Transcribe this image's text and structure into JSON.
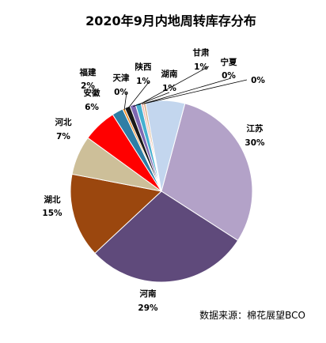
{
  "chart_data": {
    "type": "pie",
    "title": "2020年9月内地周转库存分布",
    "source": "数据来源：棉花展望BCO",
    "slices": [
      {
        "name": "江苏",
        "value": 30,
        "label": "30%",
        "color": "#b3a2c8"
      },
      {
        "name": "河南",
        "value": 29,
        "label": "29%",
        "color": "#5f4a7b"
      },
      {
        "name": "湖北",
        "value": 15,
        "label": "15%",
        "color": "#9b470e"
      },
      {
        "name": "河北",
        "value": 7,
        "label": "7%",
        "color": "#cdbf99"
      },
      {
        "name": "安徽",
        "value": 6,
        "label": "6%",
        "color": "#ff0000"
      },
      {
        "name": "福建",
        "value": 2,
        "label": "2%",
        "color": "#2f7ea5"
      },
      {
        "name": "天津",
        "value": 0.4,
        "label": "0%",
        "color": "#f08a1e"
      },
      {
        "name": "陕西",
        "value": 1,
        "label": "1%",
        "color": "#1a1a1a"
      },
      {
        "name": "湖南",
        "value": 1,
        "label": "1%",
        "color": "#7f68b2"
      },
      {
        "name": "甘肃",
        "value": 1,
        "label": "1%",
        "color": "#45b0d0"
      },
      {
        "name": "宁夏",
        "value": 0.4,
        "label": "0%",
        "color": "#f2b8b0"
      },
      {
        "name": "",
        "value": 0.4,
        "label": "0%",
        "color": "#d9b38c"
      },
      {
        "name": "",
        "value": 7,
        "label": "",
        "color": "#c3d6ee"
      }
    ]
  }
}
